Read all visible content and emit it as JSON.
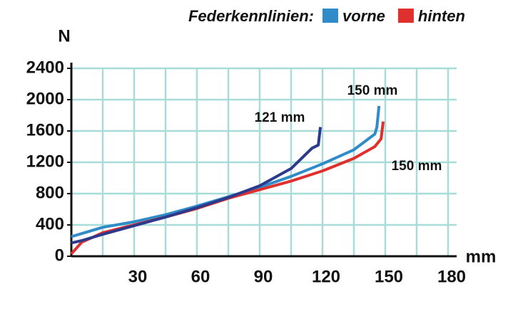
{
  "chart_data": {
    "type": "line",
    "legend_title": "Federkennlinien:",
    "x_label": "mm",
    "y_label": "N",
    "xlim": [
      0,
      180
    ],
    "ylim": [
      0,
      2400
    ],
    "xticks": [
      {
        "value": 15,
        "label": null
      },
      30,
      {
        "value": 45,
        "label": null
      },
      60,
      {
        "value": 75,
        "label": null
      },
      90,
      {
        "value": 105,
        "label": null
      },
      120,
      {
        "value": 135,
        "label": null
      },
      150,
      {
        "value": 165,
        "label": null
      },
      180
    ],
    "yticks": [
      0,
      400,
      800,
      1200,
      1600,
      2000,
      2400
    ],
    "grid": true,
    "grid_color": "#a8dcd8",
    "legend": "top-right",
    "series": [
      {
        "color": "#2b3a8c",
        "x": [
          0,
          5,
          15,
          30,
          45,
          60,
          75,
          90,
          105,
          115,
          118,
          119
        ],
        "values": [
          170,
          200,
          280,
          390,
          500,
          620,
          750,
          900,
          1120,
          1380,
          1420,
          1650
        ]
      },
      {
        "name": "vorne",
        "color": "#2f8cc8",
        "x": [
          0,
          5,
          15,
          30,
          45,
          60,
          75,
          90,
          105,
          120,
          135,
          145,
          146,
          147
        ],
        "values": [
          250,
          290,
          370,
          440,
          530,
          640,
          760,
          880,
          1020,
          1180,
          1360,
          1560,
          1650,
          1920
        ]
      },
      {
        "name": "hinten",
        "color": "#e0302e",
        "x": [
          0,
          5,
          15,
          30,
          45,
          60,
          75,
          90,
          105,
          120,
          135,
          145,
          148,
          149
        ],
        "values": [
          30,
          180,
          300,
          400,
          500,
          610,
          740,
          850,
          960,
          1090,
          1250,
          1400,
          1500,
          1720
        ]
      }
    ],
    "annotations": [
      "121 mm",
      "150 mm",
      "150 mm"
    ]
  }
}
